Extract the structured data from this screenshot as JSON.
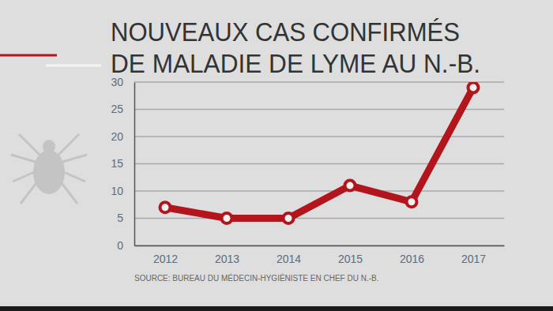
{
  "chart_data": {
    "type": "line",
    "title": [
      "NOUVEAUX CAS CONFIRMÉS",
      "DE MALADIE DE LYME AU N.-B."
    ],
    "source": "SOURCE: BUREAU DU MÉDECIN-HYGIÉNISTE EN CHEF DU N.-B.",
    "categories": [
      "2012",
      "2013",
      "2014",
      "2015",
      "2016",
      "2017"
    ],
    "values": [
      7,
      5,
      5,
      11,
      8,
      29
    ],
    "color": "#b3151c",
    "marker": "circle",
    "ylim": [
      0,
      30
    ],
    "yticks": [
      0,
      5,
      10,
      15,
      20,
      25,
      30
    ],
    "grid": true
  }
}
